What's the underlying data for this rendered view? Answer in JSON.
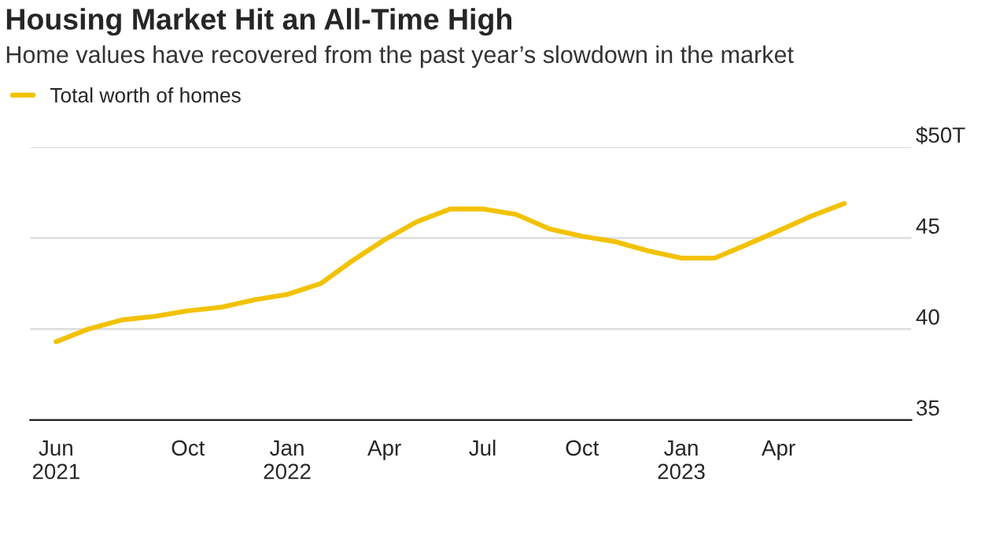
{
  "chart_data": {
    "type": "line",
    "title": "Housing Market Hit an All-Time High",
    "subtitle": "Home values have recovered from the past year’s slowdown in the market",
    "x": [
      "2021-06",
      "2021-07",
      "2021-08",
      "2021-09",
      "2021-10",
      "2021-11",
      "2021-12",
      "2022-01",
      "2022-02",
      "2022-03",
      "2022-04",
      "2022-05",
      "2022-06",
      "2022-07",
      "2022-08",
      "2022-09",
      "2022-10",
      "2022-11",
      "2022-12",
      "2023-01",
      "2023-02",
      "2023-03",
      "2023-04",
      "2023-05",
      "2023-06"
    ],
    "series": [
      {
        "name": "Total worth of homes",
        "color": "#f2c200",
        "values": [
          39.3,
          40.0,
          40.5,
          40.7,
          41.0,
          41.2,
          41.6,
          41.9,
          42.5,
          43.7,
          44.9,
          45.9,
          46.6,
          46.6,
          46.3,
          45.5,
          45.1,
          44.8,
          44.3,
          43.9,
          43.9,
          44.6,
          45.4,
          46.2,
          46.9
        ]
      }
    ],
    "xlim": [
      "2021-05-08",
      "2023-08-02"
    ],
    "xticks": [
      {
        "value": "2021-06",
        "label": "Jun\n2021"
      },
      {
        "value": "2021-10",
        "label": "Oct"
      },
      {
        "value": "2022-01",
        "label": "Jan\n2022"
      },
      {
        "value": "2022-04",
        "label": "Apr"
      },
      {
        "value": "2022-07",
        "label": "Jul"
      },
      {
        "value": "2022-10",
        "label": "Oct"
      },
      {
        "value": "2023-01",
        "label": "Jan\n2023"
      },
      {
        "value": "2023-04",
        "label": "Apr"
      }
    ],
    "ylim": [
      35,
      50
    ],
    "yticks": [
      35,
      40,
      45,
      {
        "value": 50,
        "label": "$50T"
      }
    ],
    "grid": "y",
    "legend": "top left",
    "marker": "none",
    "line_style": "solid"
  }
}
